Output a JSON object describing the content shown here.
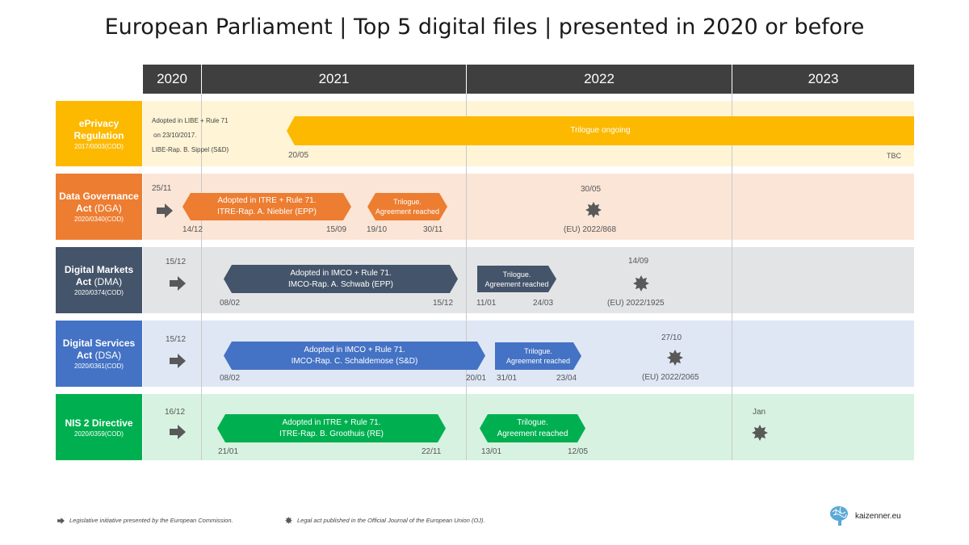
{
  "title": "European Parliament | Top 5 digital files | presented in 2020 or before",
  "years": [
    "2020",
    "2021",
    "2022",
    "2023"
  ],
  "rows": [
    {
      "name_line1": "ePrivacy",
      "name_line2": "Regulation",
      "code": "2017/0003(COD)",
      "color": "#fcb900",
      "bg": "#fff4d6",
      "notes": [
        "Adopted in LIBE + Rule 71",
        "on 23/10/2017.",
        "LIBE-Rap. B. Sippel (S&D)"
      ],
      "bar": {
        "text": "Trilogue ongoing",
        "start": "20/05",
        "end": "TBC"
      }
    },
    {
      "name_line1": "Data Governance",
      "name_line2a": "Act",
      "name_line2b": "(DGA)",
      "code": "2020/0340(COD)",
      "color": "#ed7d31",
      "bg": "#fbe5d7",
      "presented": "25/11",
      "committee": {
        "line1": "Adopted  in ITRE + Rule 71.",
        "line2": "ITRE-Rap. A. Niebler (EPP)",
        "start": "14/12",
        "end": "15/09"
      },
      "trilogue": {
        "line1": "Trilogue.",
        "line2": "Agreement reached",
        "start": "19/10",
        "end": "30/11"
      },
      "published": {
        "date": "30/05",
        "ref": "(EU) 2022/868"
      }
    },
    {
      "name_line1": "Digital Markets",
      "name_line2a": "Act",
      "name_line2b": "(DMA)",
      "code": "2020/0374(COD)",
      "color": "#44546a",
      "bg": "#e3e4e6",
      "presented": "15/12",
      "committee": {
        "line1": "Adopted  in IMCO + Rule 71.",
        "line2": "IMCO-Rap. A. Schwab (EPP)",
        "start": "08/02",
        "end": "15/12"
      },
      "trilogue": {
        "line1": "Trilogue.",
        "line2": "Agreement reached",
        "start": "11/01",
        "end": "24/03"
      },
      "published": {
        "date": "14/09",
        "ref": "(EU) 2022/1925"
      }
    },
    {
      "name_line1": "Digital Services",
      "name_line2a": "Act",
      "name_line2b": "(DSA)",
      "code": "2020/0361(COD)",
      "color": "#4472c4",
      "bg": "#dfe7f5",
      "presented": "15/12",
      "committee": {
        "line1": "Adopted  in IMCO + Rule 71.",
        "line2": "IMCO-Rap. C. Schaldemose (S&D)",
        "start": "08/02",
        "end": "20/01"
      },
      "trilogue": {
        "line1": "Trilogue.",
        "line2": "Agreement reached",
        "start": "31/01",
        "end": "23/04"
      },
      "published": {
        "date": "27/10",
        "ref": "(EU) 2022/2065"
      }
    },
    {
      "name_line1": "NIS 2 Directive",
      "code": "2020/0359(COD)",
      "color": "#00b050",
      "bg": "#d8f2e2",
      "presented": "16/12",
      "committee": {
        "line1": "Adopted  in ITRE + Rule 71.",
        "line2": "ITRE-Rap. B. Groothuis (RE)",
        "start": "21/01",
        "end": "22/11"
      },
      "trilogue": {
        "line1": "Trilogue.",
        "line2": "Agreement reached",
        "start": "13/01",
        "end": "12/05"
      },
      "published": {
        "date": "Jan"
      }
    }
  ],
  "footer": {
    "legend_presented": "Legislative initiative presented by the European Commission.",
    "legend_published": "Legal act published in the Official Journal of the European Union (OJ).",
    "brand": "kaizenner.eu"
  },
  "colors": {
    "yearbar": "#3f3f3f",
    "arrow": "#595959",
    "star": "#595959"
  },
  "icons": [
    "arrow-right-icon",
    "star-burst-icon",
    "brain-logo-icon"
  ]
}
